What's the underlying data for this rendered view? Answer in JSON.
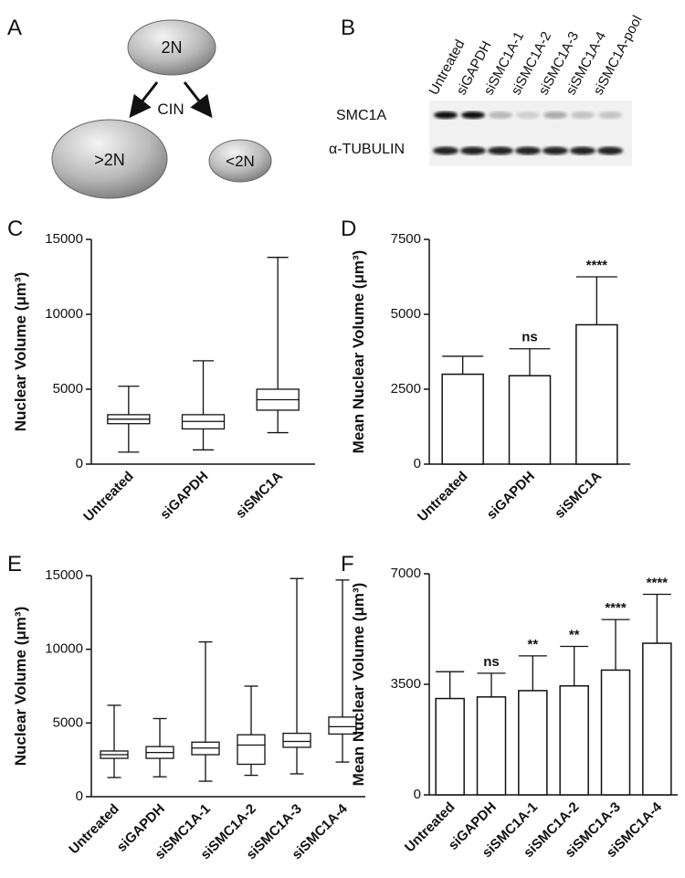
{
  "panel_labels": [
    "A",
    "B",
    "C",
    "D",
    "E",
    "F"
  ],
  "panel_a": {
    "top": "2N",
    "arrow_label": "CIN",
    "left": ">2N",
    "right": "<2N"
  },
  "panel_b": {
    "lanes": [
      "Untreated",
      "siGAPDH",
      "siSMC1A-1",
      "siSMC1A-2",
      "siSMC1A-3",
      "siSMC1A-4",
      "siSMC1A-pool"
    ],
    "rows": [
      "SMC1A",
      "α-TUBULIN"
    ]
  },
  "chart_data": [
    {
      "type": "box",
      "ylabel": "Nuclear Volume (μm³)",
      "categories": [
        "Untreated",
        "siGAPDH",
        "siSMC1A"
      ],
      "min": [
        800,
        950,
        2100
      ],
      "q1": [
        2700,
        2350,
        3600
      ],
      "median": [
        3000,
        2850,
        4300
      ],
      "q3": [
        3300,
        3300,
        5000
      ],
      "max": [
        5200,
        6900,
        13800
      ],
      "ylim": [
        0,
        15000
      ],
      "yticks": [
        0,
        5000,
        10000,
        15000
      ],
      "color": "#ffffff"
    },
    {
      "type": "bar",
      "ylabel": "Mean Nuclear Volume (μm³)",
      "categories": [
        "Untreated",
        "siGAPDH",
        "siSMC1A"
      ],
      "values": [
        3000,
        2950,
        4650
      ],
      "errors": [
        600,
        900,
        1600
      ],
      "annotations": [
        null,
        "ns",
        "****"
      ],
      "ylim": [
        0,
        7500
      ],
      "yticks": [
        0,
        2500,
        5000,
        7500
      ],
      "color": "#ffffff"
    },
    {
      "type": "box",
      "ylabel": "Nuclear Volume (μm³)",
      "categories": [
        "Untreated",
        "siGAPDH",
        "siSMC1A-1",
        "siSMC1A-2",
        "siSMC1A-3",
        "siSMC1A-4"
      ],
      "min": [
        1300,
        1350,
        1050,
        1450,
        1550,
        2350
      ],
      "q1": [
        2600,
        2600,
        2850,
        2200,
        3350,
        4250
      ],
      "median": [
        2850,
        3000,
        3300,
        3500,
        3750,
        4750
      ],
      "q3": [
        3100,
        3400,
        3700,
        4200,
        4300,
        5400
      ],
      "max": [
        6200,
        5300,
        10500,
        7500,
        14800,
        14700
      ],
      "ylim": [
        0,
        15000
      ],
      "yticks": [
        0,
        5000,
        10000,
        15000
      ],
      "color": "#ffffff"
    },
    {
      "type": "bar",
      "ylabel": "Mean Nuclear Volume (μm³)",
      "categories": [
        "Untreated",
        "siGAPDH",
        "siSMC1A-1",
        "siSMC1A-2",
        "siSMC1A-3",
        "siSMC1A-4"
      ],
      "values": [
        3050,
        3100,
        3300,
        3450,
        3950,
        4800
      ],
      "errors": [
        850,
        750,
        1100,
        1250,
        1600,
        1550
      ],
      "annotations": [
        null,
        "ns",
        "**",
        "**",
        "****",
        "****"
      ],
      "ylim": [
        0,
        7000
      ],
      "yticks": [
        0,
        3500,
        7000
      ],
      "color": "#ffffff"
    }
  ]
}
